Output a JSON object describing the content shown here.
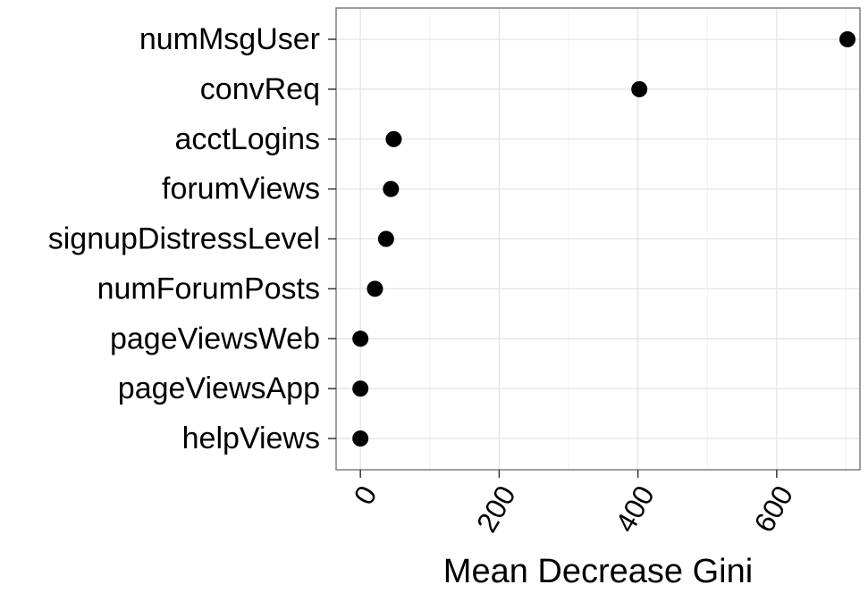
{
  "chart_data": {
    "type": "scatter",
    "title": "",
    "xlabel": "Mean Decrease Gini",
    "ylabel": "",
    "categories": [
      "numMsgUser",
      "convReq",
      "acctLogins",
      "forumViews",
      "signupDistressLevel",
      "numForumPosts",
      "pageViewsWeb",
      "pageViewsApp",
      "helpViews"
    ],
    "values": [
      702,
      402,
      48,
      44,
      37,
      21,
      0,
      0,
      0
    ],
    "x_ticks": [
      "0",
      "200",
      "400",
      "600"
    ],
    "x_tick_values": [
      0,
      200,
      400,
      600
    ],
    "xlim": [
      -35,
      720
    ],
    "grid": true,
    "point_color": "#000000"
  }
}
